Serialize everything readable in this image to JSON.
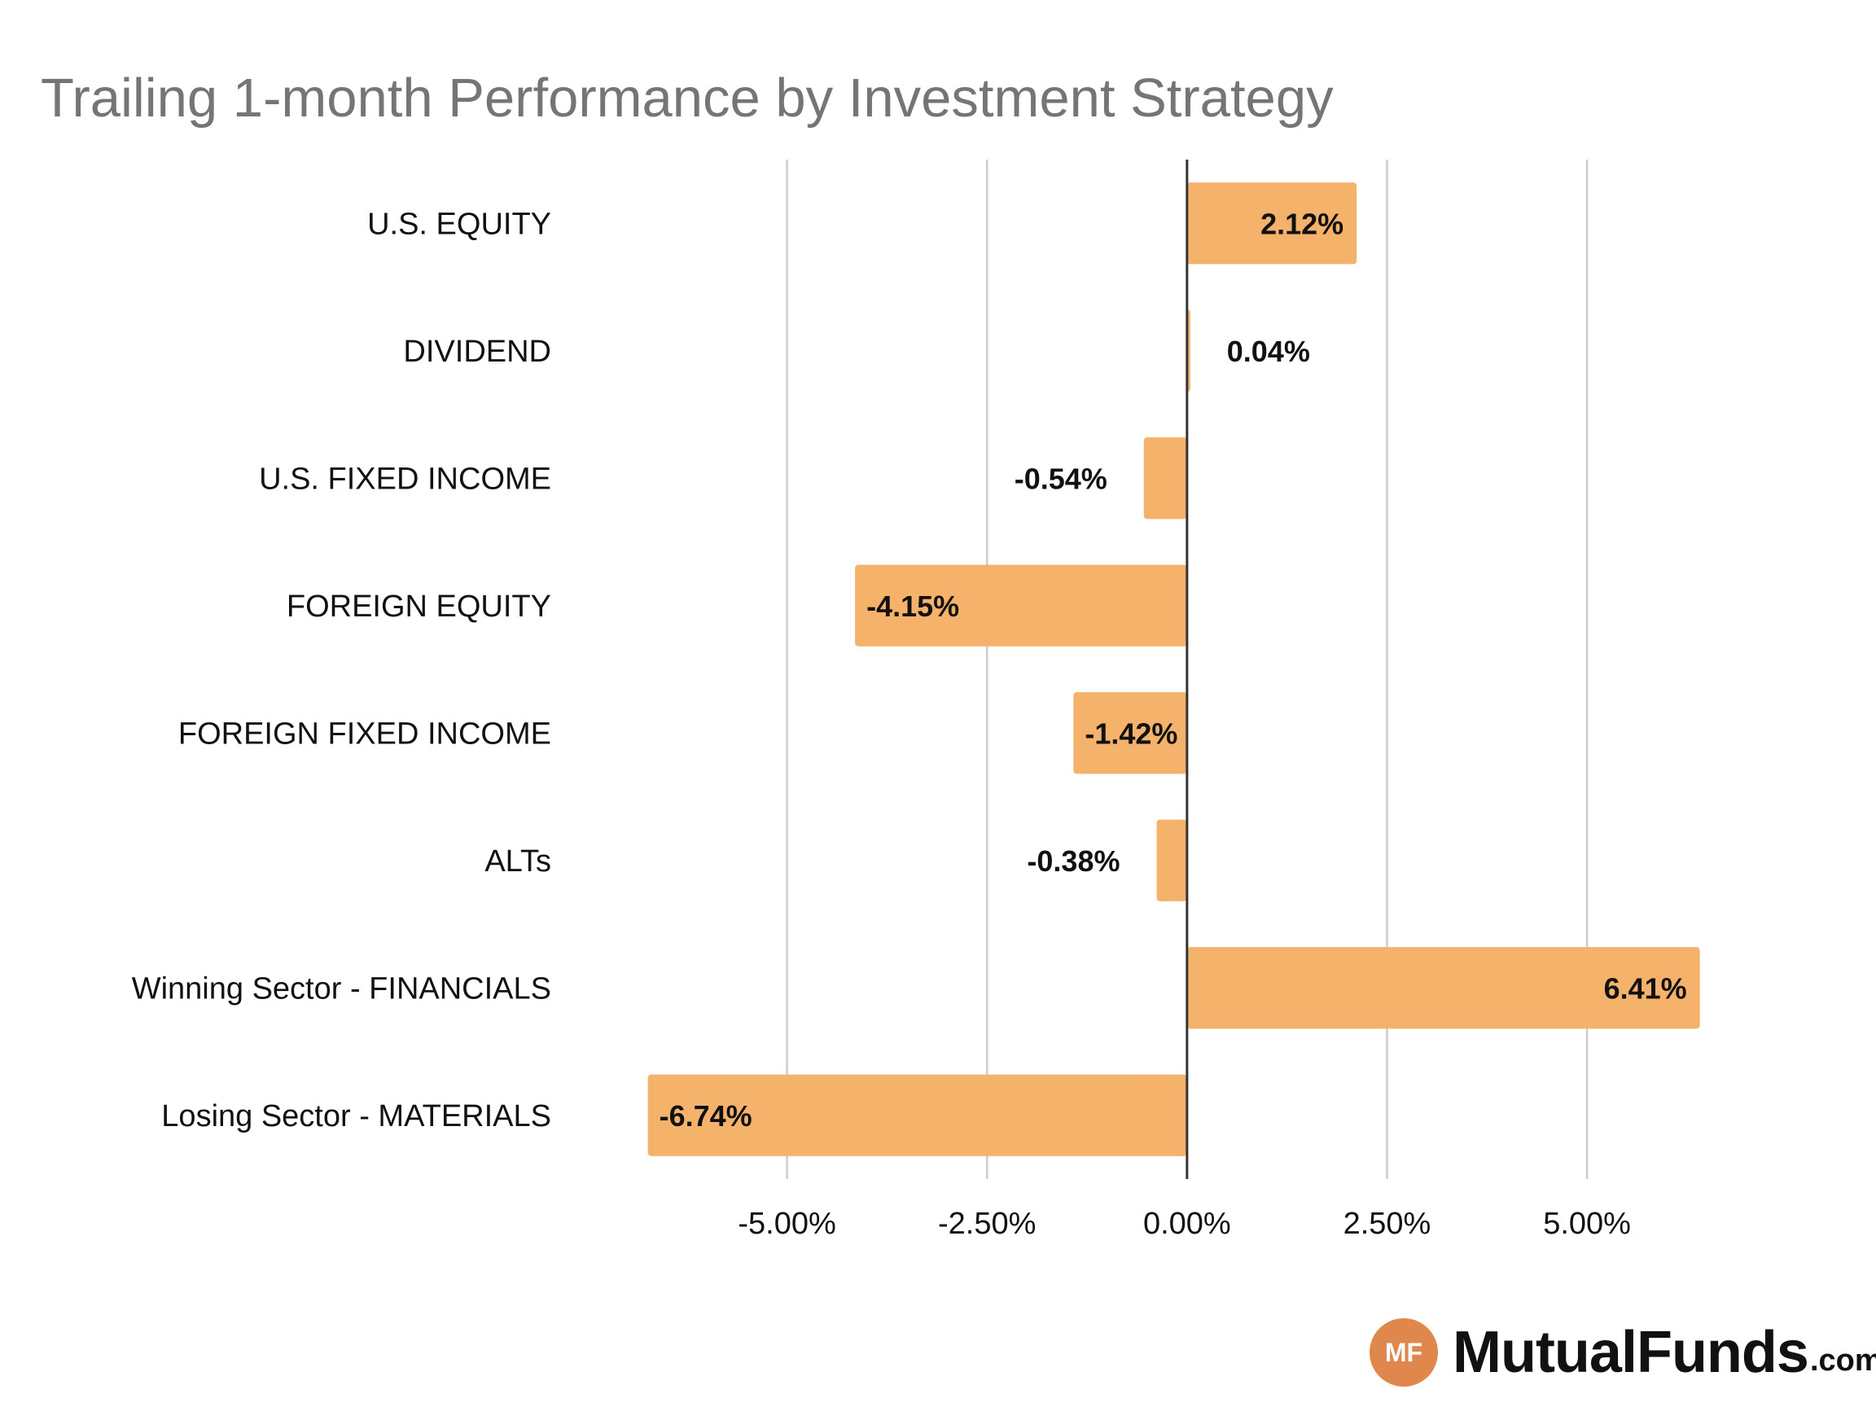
{
  "chart_data": {
    "type": "bar",
    "orientation": "horizontal",
    "title": "Trailing 1-month Performance by Investment Strategy",
    "xlabel": "",
    "ylabel": "",
    "categories": [
      "U.S. EQUITY",
      "DIVIDEND",
      "U.S. FIXED INCOME",
      "FOREIGN EQUITY",
      "FOREIGN FIXED INCOME",
      "ALTs",
      "Winning Sector - FINANCIALS",
      "Losing Sector - MATERIALS"
    ],
    "values": [
      2.12,
      0.04,
      -0.54,
      -4.15,
      -1.42,
      -0.38,
      6.41,
      -6.74
    ],
    "data_labels": [
      "2.12%",
      "0.04%",
      "-0.54%",
      "-4.15%",
      "-1.42%",
      "-0.38%",
      "6.41%",
      "-6.74%"
    ],
    "xlim": [
      -6.95,
      7.35
    ],
    "x_ticks": [
      -5,
      -2.5,
      0,
      2.5,
      5
    ],
    "x_tick_labels": [
      "-5.00%",
      "-2.50%",
      "0.00%",
      "2.50%",
      "5.00%"
    ],
    "grid": true,
    "legend": "none",
    "bar_color": "#f5b26b",
    "grid_color": "#cccccc",
    "zero_line_color": "#333333"
  },
  "logo": {
    "badge_text": "MF",
    "name": "MutualFunds",
    "tld": ".com",
    "badge_color": "#e0874d"
  }
}
